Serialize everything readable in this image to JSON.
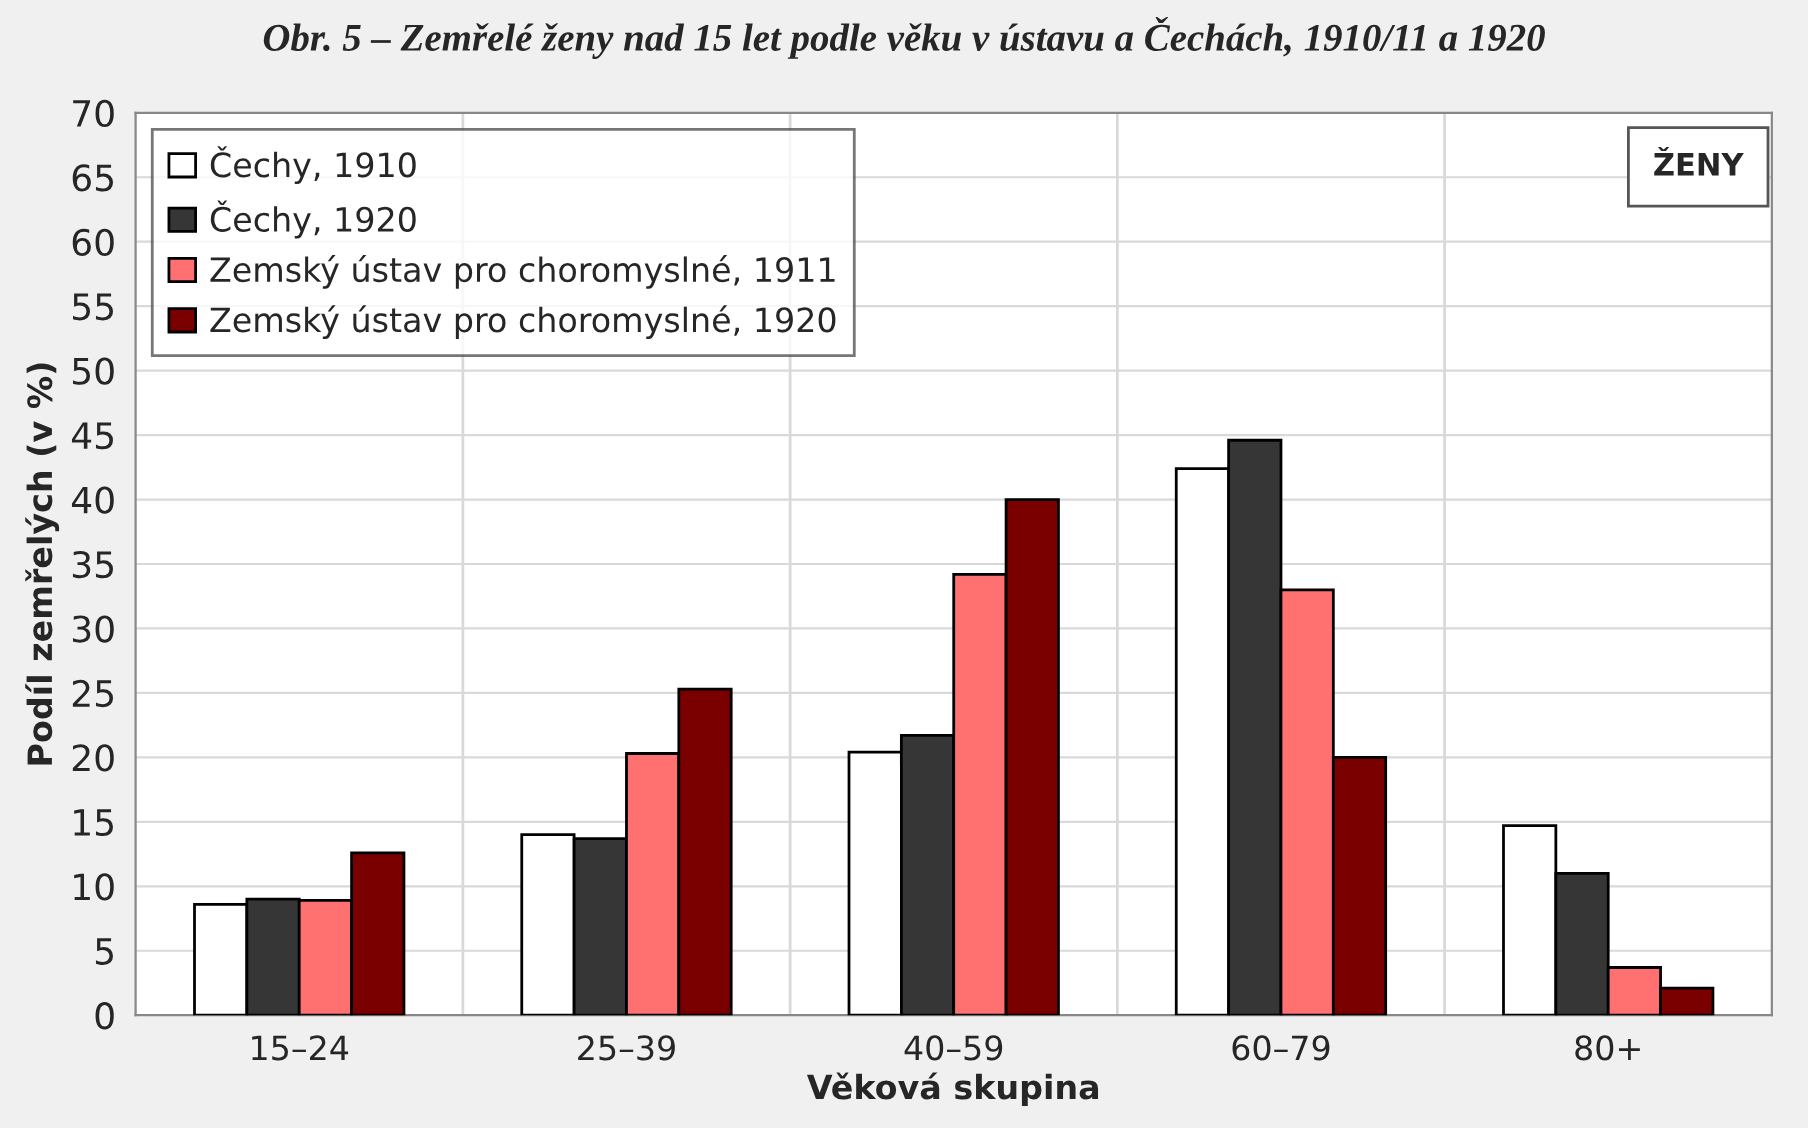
{
  "chart_data": {
    "type": "bar",
    "title": "Obr. 5 – Zemřelé ženy nad 15 let podle věku v ústavu a Čechách, 1910/11 a 1920",
    "categories": [
      "15–24",
      "25–39",
      "40–59",
      "60–79",
      "80+"
    ],
    "series": [
      {
        "name": "Čechy, 1910",
        "color": "#ffffff",
        "values": [
          8.6,
          14.0,
          20.4,
          42.4,
          14.7
        ]
      },
      {
        "name": "Čechy, 1920",
        "color": "#363636",
        "values": [
          9.0,
          13.7,
          21.7,
          44.6,
          11.0
        ]
      },
      {
        "name": "Zemský ústav pro choromyslné, 1911",
        "color": "#ff7070",
        "values": [
          8.9,
          20.3,
          34.2,
          33.0,
          3.7
        ]
      },
      {
        "name": "Zemský ústav pro choromyslné, 1920",
        "color": "#7a0000",
        "values": [
          12.6,
          25.3,
          40.0,
          20.0,
          2.1
        ]
      }
    ],
    "xlabel": "Věková skupina",
    "ylabel": "Podíl zemřelých (v %)",
    "ylim": [
      0,
      70
    ],
    "yticks": [
      0,
      5,
      10,
      15,
      20,
      25,
      30,
      35,
      40,
      45,
      50,
      55,
      60,
      65,
      70
    ],
    "annotations": [
      "ŽENY"
    ],
    "grid": "y",
    "legend": "top left"
  }
}
